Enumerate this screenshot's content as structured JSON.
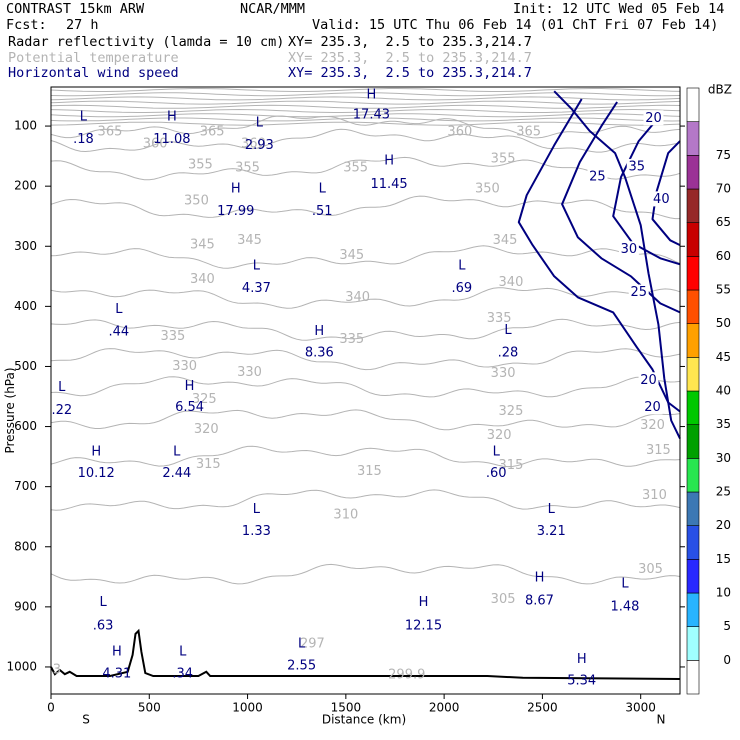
{
  "header": {
    "model": "CONTRAST 15km ARW",
    "center": "NCAR/MMM",
    "init": "Init: 12 UTC Wed 05 Feb 14",
    "fcst_label": "Fcst:",
    "fcst_value": "27 h",
    "valid": "Valid: 15 UTC Thu 06 Feb 14 (01 ChT Fri 07 Feb 14)",
    "fields": [
      {
        "name": "Radar reflectivity (lamda = 10 cm)",
        "xy": "XY= 235.3,  2.5 to 235.3,214.7",
        "color": "#000000"
      },
      {
        "name": "Potential temperature",
        "xy": "XY= 235.3,  2.5 to 235.3,214.7",
        "color": "#b4b4b4"
      },
      {
        "name": "Horizontal wind speed",
        "xy": "XY= 235.3,  2.5 to 235.3,214.7",
        "color": "#000080"
      }
    ]
  },
  "chart_data": {
    "type": "cross-section contour",
    "xlabel": "Distance (km)",
    "ylabel": "Pressure (hPa)",
    "xlim": [
      0,
      3200
    ],
    "ylim": [
      1045,
      35
    ],
    "x_ticks": [
      0,
      500,
      1000,
      1500,
      2000,
      2500,
      3000
    ],
    "y_ticks": [
      100,
      200,
      300,
      400,
      500,
      600,
      700,
      800,
      900,
      1000
    ],
    "x_end_labels": {
      "left": "S",
      "right": "N"
    },
    "colorbar": {
      "unit": "dBZ",
      "levels": [
        0,
        5,
        10,
        15,
        20,
        25,
        30,
        35,
        40,
        45,
        50,
        55,
        60,
        65,
        70,
        75
      ],
      "colors": [
        "#ffffff",
        "#a0ffff",
        "#28b4ff",
        "#2828ff",
        "#2850e6",
        "#3c78b4",
        "#28e650",
        "#00a000",
        "#00c800",
        "#ffe650",
        "#ffa000",
        "#ff5000",
        "#ff0000",
        "#c80000",
        "#962828",
        "#9b3296",
        "#b478c8",
        "#ffffff"
      ]
    },
    "theta_contours": [
      {
        "value": 305,
        "p": 845
      },
      {
        "value": 310,
        "p": 722
      },
      {
        "value": 315,
        "p": 650
      },
      {
        "value": 320,
        "p": 588
      },
      {
        "value": 325,
        "p": 535
      },
      {
        "value": 330,
        "p": 487
      },
      {
        "value": 335,
        "p": 440
      },
      {
        "value": 340,
        "p": 385
      },
      {
        "value": 345,
        "p": 318
      },
      {
        "value": 350,
        "p": 235
      },
      {
        "value": 355,
        "p": 170
      },
      {
        "value": 360,
        "p": 125
      },
      {
        "value": 365,
        "p": 100
      }
    ],
    "theta_labels": [
      {
        "text": "365",
        "x": 300,
        "p": 110
      },
      {
        "text": "365",
        "x": 820,
        "p": 110
      },
      {
        "text": "360",
        "x": 2080,
        "p": 110
      },
      {
        "text": "365",
        "x": 2430,
        "p": 110
      },
      {
        "text": "360",
        "x": 530,
        "p": 130
      },
      {
        "text": "360",
        "x": 1030,
        "p": 130
      },
      {
        "text": "355",
        "x": 2300,
        "p": 155
      },
      {
        "text": "355",
        "x": 760,
        "p": 165
      },
      {
        "text": "355",
        "x": 1000,
        "p": 170
      },
      {
        "text": "355",
        "x": 1550,
        "p": 170
      },
      {
        "text": "350",
        "x": 2220,
        "p": 205
      },
      {
        "text": "350",
        "x": 740,
        "p": 225
      },
      {
        "text": "345",
        "x": 770,
        "p": 298
      },
      {
        "text": "345",
        "x": 1010,
        "p": 290
      },
      {
        "text": "345",
        "x": 1530,
        "p": 315
      },
      {
        "text": "345",
        "x": 2310,
        "p": 290
      },
      {
        "text": "340",
        "x": 770,
        "p": 355
      },
      {
        "text": "340",
        "x": 1560,
        "p": 385
      },
      {
        "text": "340",
        "x": 2340,
        "p": 360
      },
      {
        "text": "335",
        "x": 620,
        "p": 450
      },
      {
        "text": "335",
        "x": 1530,
        "p": 455
      },
      {
        "text": "335",
        "x": 2280,
        "p": 420
      },
      {
        "text": "330",
        "x": 680,
        "p": 500
      },
      {
        "text": "330",
        "x": 1010,
        "p": 510
      },
      {
        "text": "330",
        "x": 2300,
        "p": 512
      },
      {
        "text": "325",
        "x": 780,
        "p": 555
      },
      {
        "text": "325",
        "x": 2340,
        "p": 575
      },
      {
        "text": "320",
        "x": 790,
        "p": 605
      },
      {
        "text": "320",
        "x": 2280,
        "p": 615
      },
      {
        "text": "320",
        "x": 3060,
        "p": 598
      },
      {
        "text": "315",
        "x": 800,
        "p": 663
      },
      {
        "text": "315",
        "x": 1620,
        "p": 675
      },
      {
        "text": "315",
        "x": 2340,
        "p": 665
      },
      {
        "text": "315",
        "x": 3090,
        "p": 640
      },
      {
        "text": "310",
        "x": 1500,
        "p": 747
      },
      {
        "text": "310",
        "x": 3070,
        "p": 715
      },
      {
        "text": "305",
        "x": 2300,
        "p": 888
      },
      {
        "text": "305",
        "x": 3050,
        "p": 838
      },
      {
        "text": "299.9",
        "x": 1810,
        "p": 1013
      },
      {
        "text": "297",
        "x": 1330,
        "p": 962
      },
      {
        "text": "3",
        "x": 30,
        "p": 1005
      }
    ],
    "wind_contours": [
      20,
      25,
      30,
      35,
      40
    ],
    "wind_labels": [
      {
        "text": "20",
        "x": 3065,
        "p": 87
      },
      {
        "text": "35",
        "x": 2980,
        "p": 168
      },
      {
        "text": "25",
        "x": 2780,
        "p": 185
      },
      {
        "text": "40",
        "x": 3105,
        "p": 222
      },
      {
        "text": "30",
        "x": 2940,
        "p": 305
      },
      {
        "text": "25",
        "x": 2990,
        "p": 377
      },
      {
        "text": "20",
        "x": 3040,
        "p": 523
      },
      {
        "text": "20",
        "x": 3060,
        "p": 568
      }
    ],
    "extrema": [
      {
        "type": "L",
        "value": ".18",
        "x": 165,
        "p": 85,
        "vp": 122
      },
      {
        "type": "H",
        "value": "11.08",
        "x": 615,
        "p": 85,
        "vp": 122
      },
      {
        "type": "L",
        "value": "2.93",
        "x": 1060,
        "p": 95,
        "vp": 132
      },
      {
        "type": "H",
        "value": "17.43",
        "x": 1630,
        "p": 48,
        "vp": 82
      },
      {
        "type": "H",
        "value": "11.45",
        "x": 1720,
        "p": 158,
        "vp": 197
      },
      {
        "type": "H",
        "value": "17.99",
        "x": 940,
        "p": 205,
        "vp": 242
      },
      {
        "type": "L",
        "value": ".51",
        "x": 1380,
        "p": 205,
        "vp": 242
      },
      {
        "type": "L",
        "value": "4.37",
        "x": 1045,
        "p": 333,
        "vp": 370
      },
      {
        "type": "L",
        "value": ".69",
        "x": 2090,
        "p": 333,
        "vp": 370
      },
      {
        "type": "L",
        "value": ".44",
        "x": 345,
        "p": 405,
        "vp": 443
      },
      {
        "type": "H",
        "value": "8.36",
        "x": 1365,
        "p": 442,
        "vp": 478
      },
      {
        "type": "L",
        "value": ".28",
        "x": 2325,
        "p": 440,
        "vp": 478
      },
      {
        "type": "H",
        "value": "6.54",
        "x": 705,
        "p": 533,
        "vp": 568
      },
      {
        "type": "L",
        "value": ".22",
        "x": 55,
        "p": 535,
        "vp": 573
      },
      {
        "type": "H",
        "value": "10.12",
        "x": 230,
        "p": 642,
        "vp": 678
      },
      {
        "type": "L",
        "value": "2.44",
        "x": 640,
        "p": 642,
        "vp": 678
      },
      {
        "type": "L",
        "value": ".60",
        "x": 2265,
        "p": 642,
        "vp": 678
      },
      {
        "type": "L",
        "value": "1.33",
        "x": 1045,
        "p": 738,
        "vp": 775
      },
      {
        "type": "L",
        "value": "3.21",
        "x": 2545,
        "p": 738,
        "vp": 775
      },
      {
        "type": "H",
        "value": "8.67",
        "x": 2485,
        "p": 852,
        "vp": 890
      },
      {
        "type": "L",
        "value": "1.48",
        "x": 2920,
        "p": 862,
        "vp": 900
      },
      {
        "type": "L",
        "value": ".63",
        "x": 265,
        "p": 893,
        "vp": 932
      },
      {
        "type": "H",
        "value": "12.15",
        "x": 1895,
        "p": 893,
        "vp": 932
      },
      {
        "type": "L",
        "value": "2.55",
        "x": 1275,
        "p": 962,
        "vp": 998
      },
      {
        "type": "H",
        "value": "4.31",
        "x": 335,
        "p": 975,
        "vp": 1012
      },
      {
        "type": "L",
        "value": ".34",
        "x": 670,
        "p": 975,
        "vp": 1012
      },
      {
        "type": "H",
        "value": "5.34",
        "x": 2700,
        "p": 988,
        "vp": 1023
      }
    ],
    "terrain": [
      [
        0,
        1000
      ],
      [
        20,
        1012
      ],
      [
        45,
        1005
      ],
      [
        70,
        1012
      ],
      [
        95,
        1008
      ],
      [
        130,
        1015
      ],
      [
        300,
        1015
      ],
      [
        390,
        1008
      ],
      [
        415,
        980
      ],
      [
        430,
        945
      ],
      [
        445,
        940
      ],
      [
        460,
        975
      ],
      [
        480,
        1010
      ],
      [
        520,
        1015
      ],
      [
        750,
        1015
      ],
      [
        790,
        1008
      ],
      [
        810,
        1015
      ],
      [
        2220,
        1015
      ],
      [
        2400,
        1018
      ],
      [
        3200,
        1020
      ]
    ]
  }
}
